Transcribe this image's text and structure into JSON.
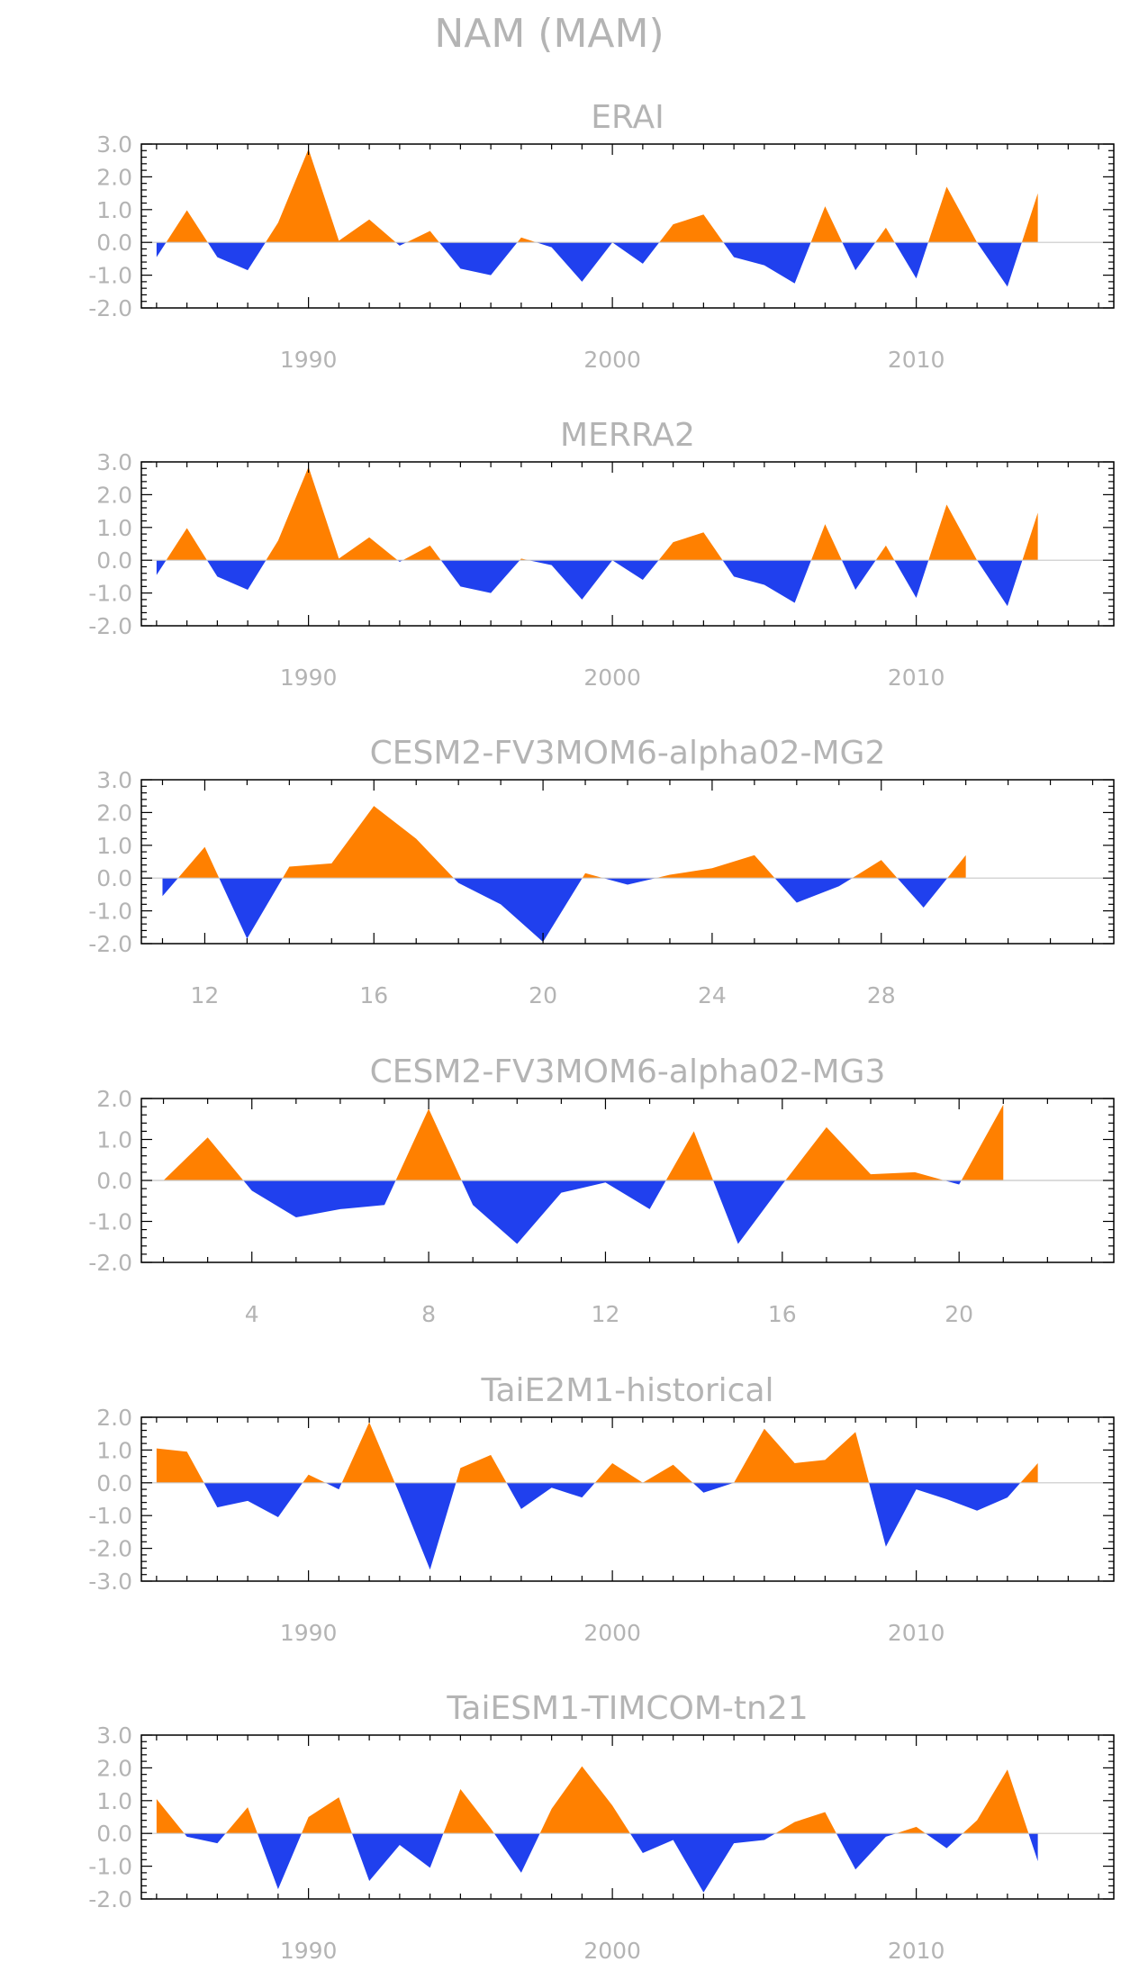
{
  "figure_title": "NAM (MAM)",
  "colors": {
    "positive": "#ff8000",
    "negative": "#2040ee",
    "text": "#b4b4b4",
    "axis": "#000000"
  },
  "chart_data": [
    {
      "type": "area",
      "title": "ERAI",
      "ylim": [
        -2.0,
        3.0
      ],
      "yticks": [
        3.0,
        2.0,
        1.0,
        0.0,
        -1.0,
        -2.0
      ],
      "xlim": [
        1984.5,
        2016.5
      ],
      "xticks": [
        1990,
        2000,
        2010
      ],
      "x": [
        1985,
        1986,
        1987,
        1988,
        1989,
        1990,
        1991,
        1992,
        1993,
        1994,
        1995,
        1996,
        1997,
        1998,
        1999,
        2000,
        2001,
        2002,
        2003,
        2004,
        2005,
        2006,
        2007,
        2008,
        2009,
        2010,
        2011,
        2012,
        2013,
        2014
      ],
      "values": [
        -0.45,
        0.98,
        -0.45,
        -0.85,
        0.6,
        2.85,
        0.05,
        0.7,
        -0.1,
        0.35,
        -0.8,
        -1.0,
        0.15,
        -0.15,
        -1.2,
        0.0,
        -0.65,
        0.55,
        0.85,
        -0.45,
        -0.7,
        -1.25,
        1.1,
        -0.85,
        0.45,
        -1.1,
        1.7,
        0.0,
        -1.35,
        1.5
      ]
    },
    {
      "type": "area",
      "title": "MERRA2",
      "ylim": [
        -2.0,
        3.0
      ],
      "yticks": [
        3.0,
        2.0,
        1.0,
        0.0,
        -1.0,
        -2.0
      ],
      "xlim": [
        1984.5,
        2016.5
      ],
      "xticks": [
        1990,
        2000,
        2010
      ],
      "x": [
        1985,
        1986,
        1987,
        1988,
        1989,
        1990,
        1991,
        1992,
        1993,
        1994,
        1995,
        1996,
        1997,
        1998,
        1999,
        2000,
        2001,
        2002,
        2003,
        2004,
        2005,
        2006,
        2007,
        2008,
        2009,
        2010,
        2011,
        2012,
        2013,
        2014
      ],
      "values": [
        -0.45,
        0.98,
        -0.5,
        -0.9,
        0.6,
        2.85,
        0.05,
        0.7,
        -0.05,
        0.45,
        -0.8,
        -1.0,
        0.05,
        -0.15,
        -1.2,
        0.0,
        -0.6,
        0.55,
        0.85,
        -0.5,
        -0.75,
        -1.3,
        1.1,
        -0.9,
        0.45,
        -1.15,
        1.7,
        0.0,
        -1.4,
        1.45
      ]
    },
    {
      "type": "area",
      "title": "CESM2-FV3MOM6-alpha02-MG2",
      "ylim": [
        -2.0,
        3.0
      ],
      "yticks": [
        3.0,
        2.0,
        1.0,
        0.0,
        -1.0,
        -2.0
      ],
      "xlim": [
        10.5,
        33.5
      ],
      "xticks": [
        12,
        16,
        20,
        24,
        28
      ],
      "x": [
        11,
        12,
        13,
        14,
        15,
        16,
        17,
        18,
        19,
        20,
        21,
        22,
        23,
        24,
        25,
        26,
        27,
        28,
        29,
        30
      ],
      "values": [
        -0.55,
        0.95,
        -1.85,
        0.35,
        0.45,
        2.2,
        1.2,
        -0.15,
        -0.8,
        -1.95,
        0.15,
        -0.2,
        0.1,
        0.3,
        0.7,
        -0.75,
        -0.25,
        0.55,
        -0.9,
        0.7
      ]
    },
    {
      "type": "area",
      "title": "CESM2-FV3MOM6-alpha02-MG3",
      "ylim": [
        -2.0,
        2.0
      ],
      "yticks": [
        2.0,
        1.0,
        0.0,
        -1.0,
        -2.0
      ],
      "xlim": [
        1.5,
        23.5
      ],
      "xticks": [
        4,
        8,
        12,
        16,
        20
      ],
      "x": [
        2,
        3,
        4,
        5,
        6,
        7,
        8,
        9,
        10,
        11,
        12,
        13,
        14,
        15,
        16,
        17,
        18,
        19,
        20,
        21
      ],
      "values": [
        0.0,
        1.05,
        -0.25,
        -0.9,
        -0.7,
        -0.6,
        1.75,
        -0.6,
        -1.55,
        -0.3,
        -0.05,
        -0.7,
        1.2,
        -1.55,
        -0.1,
        1.3,
        0.15,
        0.2,
        -0.1,
        1.85
      ]
    },
    {
      "type": "area",
      "title": "TaiE2M1-historical",
      "ylim": [
        -3.0,
        2.0
      ],
      "yticks": [
        2.0,
        1.0,
        0.0,
        -1.0,
        -2.0,
        -3.0
      ],
      "xlim": [
        1984.5,
        2016.5
      ],
      "xticks": [
        1990,
        2000,
        2010
      ],
      "x": [
        1985,
        1986,
        1987,
        1988,
        1989,
        1990,
        1991,
        1992,
        1993,
        1994,
        1995,
        1996,
        1997,
        1998,
        1999,
        2000,
        2001,
        2002,
        2003,
        2004,
        2005,
        2006,
        2007,
        2008,
        2009,
        2010,
        2011,
        2012,
        2013,
        2014
      ],
      "values": [
        1.05,
        0.95,
        -0.75,
        -0.55,
        -1.05,
        0.25,
        -0.2,
        1.85,
        -0.35,
        -2.65,
        0.45,
        0.85,
        -0.8,
        -0.15,
        -0.45,
        0.6,
        0.0,
        0.55,
        -0.3,
        0.0,
        1.65,
        0.6,
        0.7,
        1.55,
        -1.95,
        -0.2,
        -0.5,
        -0.85,
        -0.45,
        0.6
      ]
    },
    {
      "type": "area",
      "title": "TaiESM1-TIMCOM-tn21",
      "ylim": [
        -2.0,
        3.0
      ],
      "yticks": [
        3.0,
        2.0,
        1.0,
        0.0,
        -1.0,
        -2.0
      ],
      "xlim": [
        1984.5,
        2016.5
      ],
      "xticks": [
        1990,
        2000,
        2010
      ],
      "x": [
        1985,
        1986,
        1987,
        1988,
        1989,
        1990,
        1991,
        1992,
        1993,
        1994,
        1995,
        1996,
        1997,
        1998,
        1999,
        2000,
        2001,
        2002,
        2003,
        2004,
        2005,
        2006,
        2007,
        2008,
        2009,
        2010,
        2011,
        2012,
        2013,
        2014
      ],
      "values": [
        1.05,
        -0.1,
        -0.3,
        0.8,
        -1.7,
        0.5,
        1.1,
        -1.45,
        -0.35,
        -1.05,
        1.35,
        0.15,
        -1.2,
        0.75,
        2.05,
        0.85,
        -0.6,
        -0.2,
        -1.8,
        -0.3,
        -0.2,
        0.35,
        0.65,
        -1.1,
        -0.1,
        0.2,
        -0.45,
        0.4,
        1.95,
        -0.85
      ]
    }
  ]
}
